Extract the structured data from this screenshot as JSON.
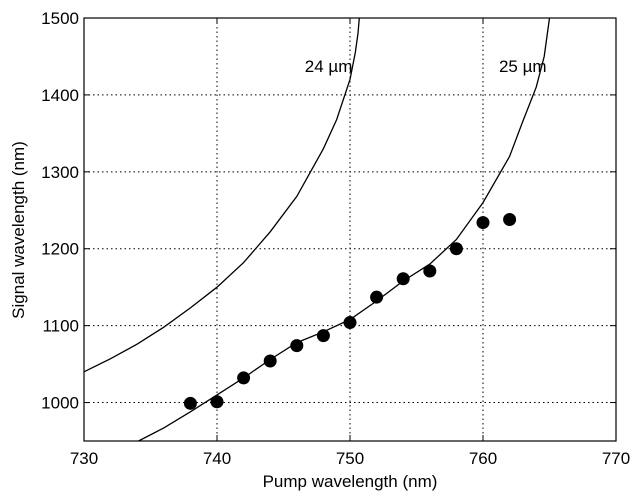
{
  "chart_data": {
    "type": "scatter",
    "title": "",
    "xlabel": "Pump wavelength (nm)",
    "ylabel": "Signal wavelength (nm)",
    "xlim": [
      730,
      770
    ],
    "ylim": [
      950,
      1500
    ],
    "xticks": [
      730,
      740,
      750,
      760,
      770
    ],
    "yticks": [
      1000,
      1100,
      1200,
      1300,
      1400,
      1500
    ],
    "grid": true,
    "colors": {
      "ink": "#000000",
      "grid": "#000000",
      "background": "#ffffff"
    },
    "series": [
      {
        "kind": "points",
        "points": [
          [
            738,
            999
          ],
          [
            740,
            1001
          ],
          [
            742,
            1032
          ],
          [
            744,
            1054
          ],
          [
            746,
            1074
          ],
          [
            748,
            1087
          ],
          [
            750,
            1104
          ],
          [
            752,
            1137
          ],
          [
            754,
            1161
          ],
          [
            756,
            1171
          ],
          [
            758,
            1200
          ],
          [
            760,
            1234
          ],
          [
            762,
            1238
          ]
        ]
      },
      {
        "kind": "line",
        "points": [
          [
            730,
            1040
          ],
          [
            732,
            1057
          ],
          [
            734,
            1076
          ],
          [
            736,
            1098
          ],
          [
            738,
            1123
          ],
          [
            740,
            1150
          ],
          [
            742,
            1182
          ],
          [
            744,
            1222
          ],
          [
            746,
            1268
          ],
          [
            748,
            1330
          ],
          [
            749,
            1368
          ],
          [
            750,
            1420
          ],
          [
            750.4,
            1455
          ],
          [
            750.6,
            1480
          ],
          [
            750.7,
            1500
          ]
        ]
      },
      {
        "kind": "line",
        "points": [
          [
            734.1,
            950
          ],
          [
            736,
            967
          ],
          [
            738,
            988
          ],
          [
            740,
            1010
          ],
          [
            742,
            1032
          ],
          [
            744,
            1056
          ],
          [
            746,
            1078
          ],
          [
            748,
            1092
          ],
          [
            750,
            1108
          ],
          [
            752,
            1132
          ],
          [
            754,
            1158
          ],
          [
            756,
            1180
          ],
          [
            758,
            1212
          ],
          [
            760,
            1260
          ],
          [
            762,
            1320
          ],
          [
            763,
            1366
          ],
          [
            764,
            1410
          ],
          [
            764.6,
            1450
          ],
          [
            765,
            1500
          ]
        ]
      }
    ],
    "annotations": [
      {
        "text": "24 µm",
        "x": 746.6,
        "y": 1430
      },
      {
        "text": "25 µm",
        "x": 761.2,
        "y": 1430
      }
    ]
  }
}
